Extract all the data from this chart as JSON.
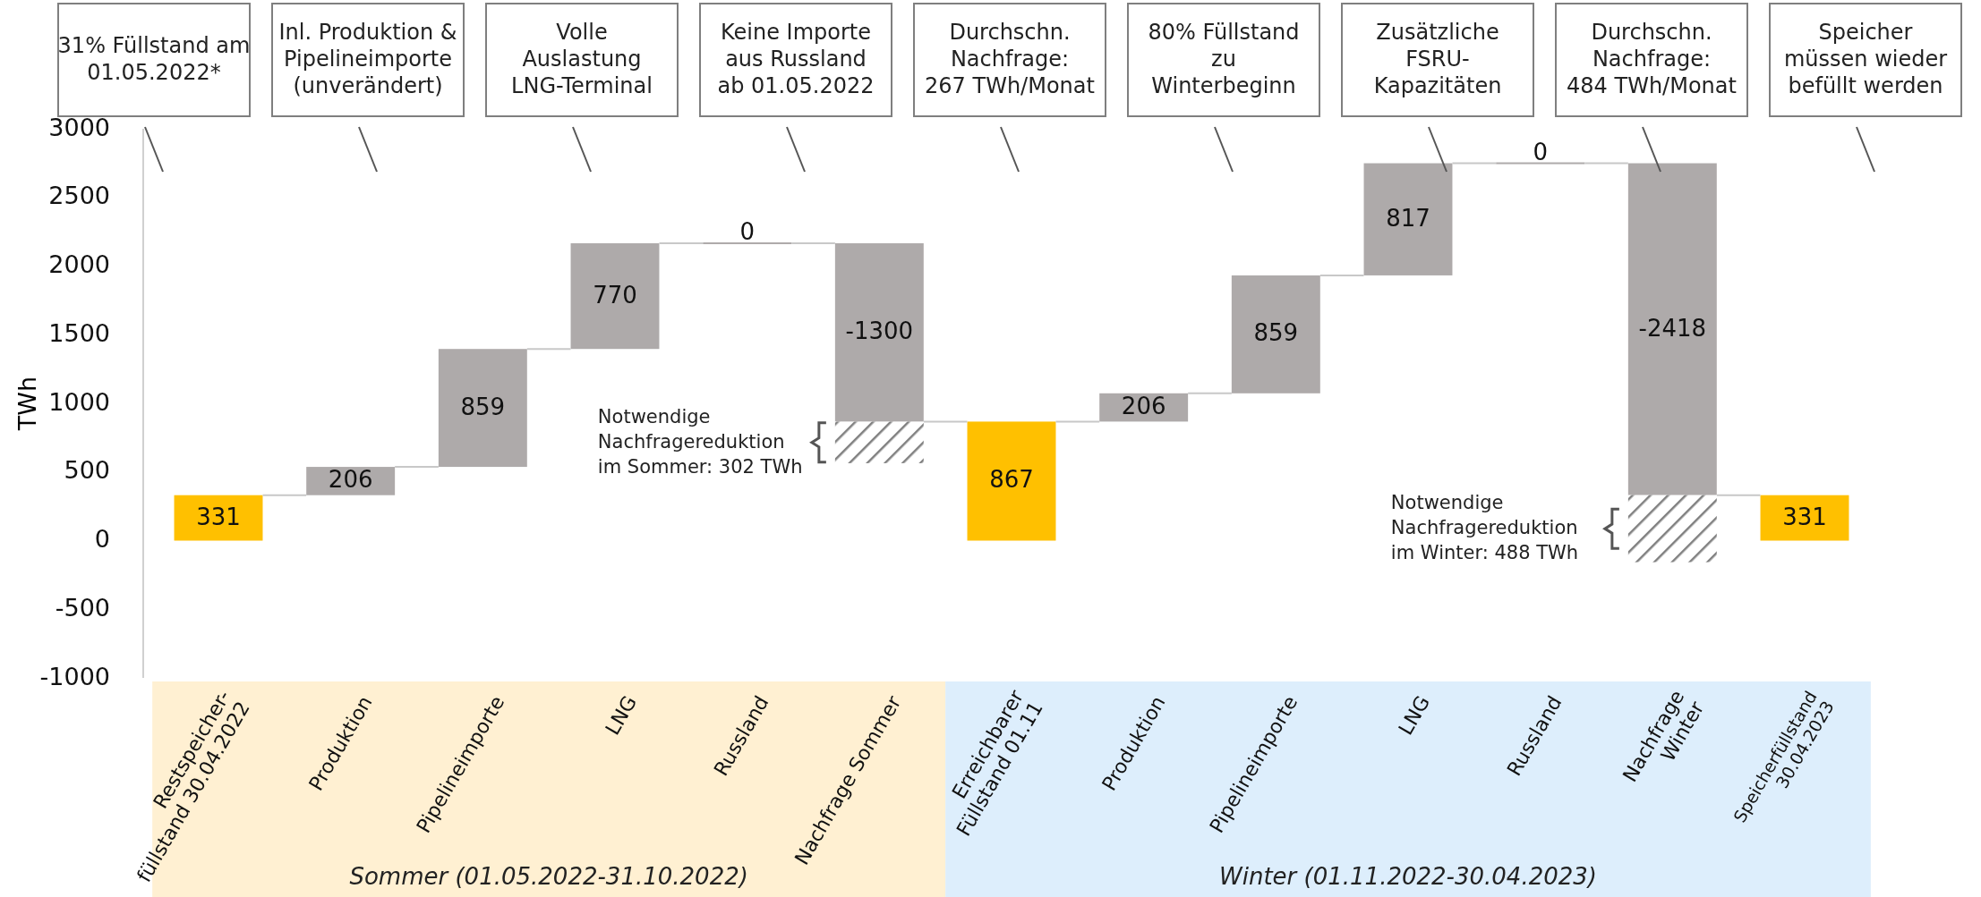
{
  "chart_data": {
    "type": "bar",
    "ylabel": "TWh",
    "categories": [
      "Restspeicher-\nfüllstand 30.04.2022",
      "Produktion",
      "Pipelineimporte",
      "LNG",
      "Russland",
      "Nachfrage Sommer",
      "Erreichbarer\nFüllstand 01.11",
      "Produktion",
      "Pipelineimporte",
      "LNG",
      "Russland",
      "Nachfrage\nWinter",
      "Speicherfüllstand\n30.04.2023"
    ],
    "series": [
      {
        "values": [
          331,
          206,
          859,
          770,
          0,
          -1300,
          867,
          206,
          859,
          817,
          0,
          -2418,
          331
        ],
        "base": [
          0,
          331,
          537,
          1396,
          2166,
          2166,
          0,
          867,
          1073,
          1932,
          2749,
          2749,
          0
        ],
        "colors": [
          "#ffc000",
          "#aeaaaa",
          "#aeaaaa",
          "#aeaaaa",
          "#aeaaaa",
          "#aeaaaa",
          "#ffc000",
          "#aeaaaa",
          "#aeaaaa",
          "#aeaaaa",
          "#aeaaaa",
          "#aeaaaa",
          "#ffc000"
        ],
        "value_labels": [
          "331",
          "206",
          "859",
          "770",
          "0",
          "-1300",
          "867",
          "206",
          "859",
          "817",
          "0",
          "-2418",
          "331"
        ]
      },
      {
        "values": [
          null,
          null,
          null,
          null,
          null,
          -302,
          null,
          null,
          null,
          null,
          null,
          -488,
          null
        ],
        "base": [
          null,
          null,
          null,
          null,
          null,
          866,
          null,
          null,
          null,
          null,
          null,
          331,
          null
        ],
        "color": "#808080"
      }
    ],
    "ylim": [
      -1000,
      3000
    ],
    "yticks": [
      -1000,
      -500,
      0,
      500,
      1000,
      1500,
      2000,
      2500,
      3000
    ],
    "annotations": [
      "31% Füllstand am\n01.05.2022*",
      "Inl. Produktion &\nPipelineimporte\n(unverändert)",
      "Volle\nAuslastung\nLNG-Terminal",
      "Keine Importe\naus Russland\nab 01.05.2022",
      "Durchschn.\nNachfrage:\n267 TWh/Monat",
      "80% Füllstand\nzu\nWinterbeginn",
      "Zusätzliche\nFSRU-\nKapazitäten",
      "Durchschn.\nNachfrage:\n484 TWh/Monat",
      "Speicher\nmüssen wieder\nbefüllt werden",
      "Notwendige\nNachfragereduktion\nim Sommer: 302 TWh",
      "Notwendige\nNachfragereduktion\nim Winter: 488 TWh",
      "Sommer (01.05.2022-31.10.2022)",
      "Winter (01.11.2022-30.04.2023)"
    ]
  }
}
